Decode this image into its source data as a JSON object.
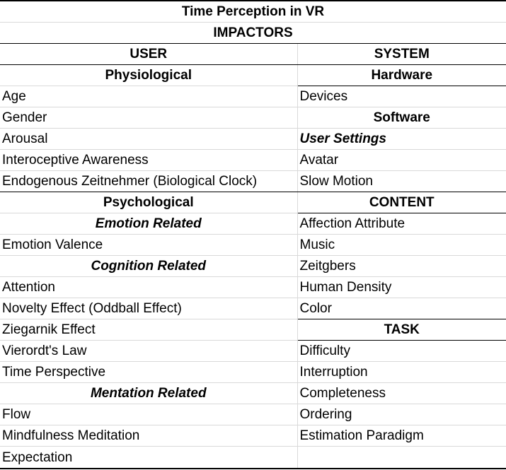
{
  "title": "Time Perception in VR",
  "subtitle": "IMPACTORS",
  "columns": [
    "USER",
    "SYSTEM"
  ],
  "rows": [
    {
      "left": {
        "text": "Physiological",
        "style": "header"
      },
      "right": {
        "text": "Hardware",
        "style": "header"
      }
    },
    {
      "left": {
        "text": "Age",
        "style": "plain"
      },
      "right": {
        "text": "Devices",
        "style": "plain"
      }
    },
    {
      "left": {
        "text": "Gender",
        "style": "plain"
      },
      "right": {
        "text": "Software",
        "style": "header"
      }
    },
    {
      "left": {
        "text": "Arousal",
        "style": "plain"
      },
      "right": {
        "text": "User Settings",
        "style": "italic-left"
      }
    },
    {
      "left": {
        "text": "Interoceptive Awareness",
        "style": "plain"
      },
      "right": {
        "text": "Avatar",
        "style": "plain"
      }
    },
    {
      "left": {
        "text": "Endogenous Zeitnehmer (Biological Clock)",
        "style": "plain"
      },
      "right": {
        "text": "Slow Motion",
        "style": "plain"
      }
    },
    {
      "left": {
        "text": "Psychological",
        "style": "header"
      },
      "right": {
        "text": "CONTENT",
        "style": "header"
      }
    },
    {
      "left": {
        "text": "Emotion Related",
        "style": "italic-center"
      },
      "right": {
        "text": "Affection Attribute",
        "style": "plain"
      }
    },
    {
      "left": {
        "text": "Emotion Valence",
        "style": "plain"
      },
      "right": {
        "text": "Music",
        "style": "plain"
      }
    },
    {
      "left": {
        "text": "Cognition Related",
        "style": "italic-center"
      },
      "right": {
        "text": "Zeitgbers",
        "style": "plain"
      }
    },
    {
      "left": {
        "text": "Attention",
        "style": "plain"
      },
      "right": {
        "text": "Human Density",
        "style": "plain"
      }
    },
    {
      "left": {
        "text": "Novelty Effect (Oddball Effect)",
        "style": "plain"
      },
      "right": {
        "text": "Color",
        "style": "plain"
      }
    },
    {
      "left": {
        "text": "Ziegarnik Effect",
        "style": "plain"
      },
      "right": {
        "text": "TASK",
        "style": "header"
      }
    },
    {
      "left": {
        "text": "Vierordt's Law",
        "style": "plain"
      },
      "right": {
        "text": "Difficulty",
        "style": "plain"
      }
    },
    {
      "left": {
        "text": "Time Perspective",
        "style": "plain"
      },
      "right": {
        "text": "Interruption",
        "style": "plain"
      }
    },
    {
      "left": {
        "text": "Mentation Related",
        "style": "italic-center"
      },
      "right": {
        "text": "Completeness",
        "style": "plain"
      }
    },
    {
      "left": {
        "text": "Flow",
        "style": "plain"
      },
      "right": {
        "text": "Ordering",
        "style": "plain"
      }
    },
    {
      "left": {
        "text": "Mindfulness Meditation",
        "style": "plain"
      },
      "right": {
        "text": "Estimation Paradigm",
        "style": "plain"
      }
    },
    {
      "left": {
        "text": "Expectation",
        "style": "plain"
      },
      "right": {
        "text": "",
        "style": "plain"
      }
    }
  ]
}
